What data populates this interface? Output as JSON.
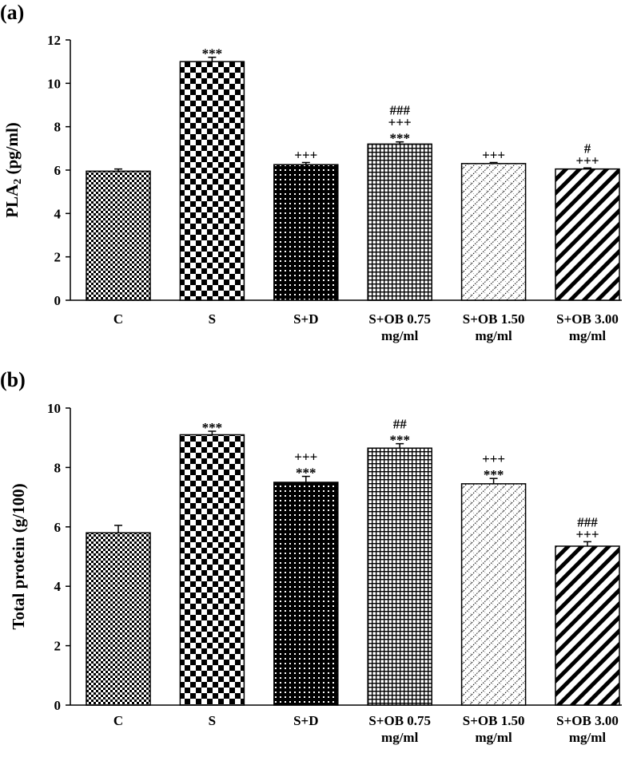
{
  "chart_data": [
    {
      "panel_label": "(a)",
      "type": "bar",
      "ylabel": "PLA",
      "ylabel_sub": "2",
      "ylabel_unit": " (pg/ml)",
      "ylim": [
        0,
        12
      ],
      "yticks": [
        "0",
        "2",
        "4",
        "6",
        "8",
        "10",
        "12"
      ],
      "categories": [
        [
          "C"
        ],
        [
          "S"
        ],
        [
          "S+D"
        ],
        [
          "S+OB 0.75",
          "mg/ml"
        ],
        [
          "S+OB 1.50",
          "mg/ml"
        ],
        [
          "S+OB 3.00",
          "mg/ml"
        ]
      ],
      "values": [
        5.95,
        11.0,
        6.25,
        7.2,
        6.3,
        6.05
      ],
      "errors": [
        0.1,
        0.2,
        0.1,
        0.1,
        0.05,
        0.05
      ],
      "significance": [
        [],
        [
          "***"
        ],
        [
          "+++"
        ],
        [
          "###",
          "+++",
          "***"
        ],
        [
          "+++"
        ],
        [
          "#",
          "+++"
        ]
      ],
      "patterns": [
        "checker-small",
        "checker-large",
        "dots",
        "grid",
        "diag-dotted",
        "diag-stripes"
      ]
    },
    {
      "panel_label": "(b)",
      "type": "bar",
      "ylabel": "Total protein (g/100)",
      "ylim": [
        0,
        10
      ],
      "yticks": [
        "0",
        "2",
        "4",
        "6",
        "8",
        "10"
      ],
      "categories": [
        [
          "C"
        ],
        [
          "S"
        ],
        [
          "S+D"
        ],
        [
          "S+OB 0.75",
          "mg/ml"
        ],
        [
          "S+OB 1.50",
          "mg/ml"
        ],
        [
          "S+OB 3.00",
          "mg/ml"
        ]
      ],
      "values": [
        5.8,
        9.1,
        7.5,
        8.65,
        7.45,
        5.35
      ],
      "errors": [
        0.25,
        0.12,
        0.2,
        0.15,
        0.18,
        0.15
      ],
      "significance": [
        [],
        [
          "***"
        ],
        [
          "+++",
          "***"
        ],
        [
          "##",
          "***"
        ],
        [
          "+++",
          "***"
        ],
        [
          "###",
          "+++"
        ]
      ],
      "patterns": [
        "checker-small",
        "checker-large",
        "dots",
        "grid",
        "diag-dotted",
        "diag-stripes"
      ]
    }
  ]
}
